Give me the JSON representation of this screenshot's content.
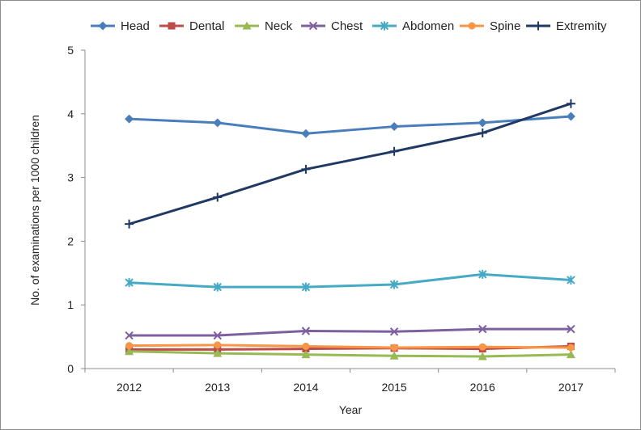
{
  "chart_data": {
    "type": "line",
    "title": "",
    "xlabel": "Year",
    "ylabel": "No. of examinations per 1000 children",
    "x": [
      "2012",
      "2013",
      "2014",
      "2015",
      "2016",
      "2017"
    ],
    "ylim": [
      0,
      5
    ],
    "yticks": [
      "0",
      "1",
      "2",
      "3",
      "4",
      "5"
    ],
    "grid": false,
    "legend_position": "top",
    "series": [
      {
        "name": "Head",
        "color": "#4a7ebb",
        "marker": "diamond",
        "values": [
          3.92,
          3.86,
          3.69,
          3.8,
          3.86,
          3.96
        ]
      },
      {
        "name": "Dental",
        "color": "#be4b48",
        "marker": "square",
        "values": [
          0.3,
          0.3,
          0.31,
          0.32,
          0.31,
          0.35
        ]
      },
      {
        "name": "Neck",
        "color": "#98b954",
        "marker": "triangle",
        "values": [
          0.27,
          0.24,
          0.22,
          0.2,
          0.19,
          0.22
        ]
      },
      {
        "name": "Chest",
        "color": "#7d60a0",
        "marker": "x",
        "values": [
          0.52,
          0.52,
          0.59,
          0.58,
          0.62,
          0.62
        ]
      },
      {
        "name": "Abdomen",
        "color": "#46aac5",
        "marker": "star",
        "values": [
          1.35,
          1.28,
          1.28,
          1.32,
          1.48,
          1.39
        ]
      },
      {
        "name": "Spine",
        "color": "#f79646",
        "marker": "circle",
        "values": [
          0.36,
          0.37,
          0.35,
          0.33,
          0.34,
          0.33
        ]
      },
      {
        "name": "Extremity",
        "color": "#1f3864",
        "marker": "plus",
        "values": [
          2.27,
          2.69,
          3.13,
          3.41,
          3.7,
          4.16
        ]
      }
    ]
  }
}
